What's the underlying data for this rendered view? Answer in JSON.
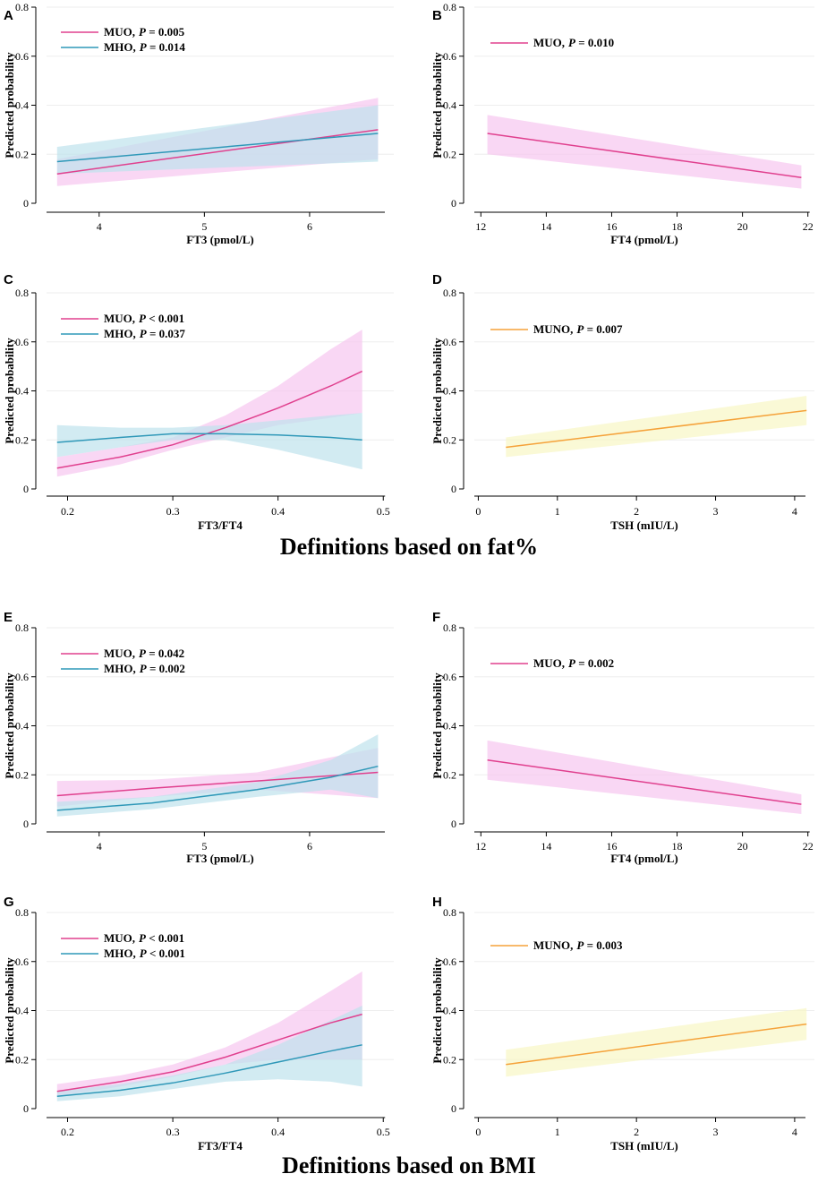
{
  "figure": {
    "section_titles": [
      "Definitions based on fat%",
      "Definitions based on BMI"
    ],
    "y_axis_label": "Predicted probability",
    "y_ticks": [
      "0",
      "0.2",
      "0.4",
      "0.6",
      "0.8"
    ],
    "colors": {
      "MUO": "#e0408e",
      "MHO": "#2f98b8",
      "MUNO": "#f5a23a",
      "MUO_band": "#f7c6ef",
      "MHO_band": "#bfe3ec",
      "MUNO_band": "#f8f7c4",
      "axis": "#000000"
    }
  },
  "chart_data": [
    {
      "panel": "A",
      "type": "line",
      "xlabel": "FT3 (pmol/L)",
      "ylabel": "Predicted probability",
      "xlim": [
        3.5,
        6.8
      ],
      "ylim": [
        0,
        0.8
      ],
      "xticks": [
        4,
        5,
        6
      ],
      "xtick_labels": [
        "4",
        "5",
        "6"
      ],
      "legend": [
        {
          "group": "MUO",
          "text": "MUO,",
          "p_label": "P",
          "p_text": " = 0.005"
        },
        {
          "group": "MHO",
          "text": "MHO,",
          "p_label": "P",
          "p_text": " = 0.014"
        }
      ],
      "series": [
        {
          "group": "MUO",
          "x": [
            3.6,
            6.65
          ],
          "y": [
            0.12,
            0.3
          ],
          "lo": [
            0.07,
            0.18
          ],
          "hi": [
            0.18,
            0.43
          ]
        },
        {
          "group": "MHO",
          "x": [
            3.6,
            6.65
          ],
          "y": [
            0.17,
            0.285
          ],
          "lo": [
            0.12,
            0.17
          ],
          "hi": [
            0.23,
            0.4
          ]
        }
      ]
    },
    {
      "panel": "B",
      "type": "line",
      "xlabel": "FT4 (pmol/L)",
      "ylabel": "Predicted probability",
      "xlim": [
        11.8,
        22.2
      ],
      "ylim": [
        0,
        0.8
      ],
      "xticks": [
        12,
        14,
        16,
        18,
        20,
        22
      ],
      "xtick_labels": [
        "12",
        "14",
        "16",
        "18",
        "20",
        "22"
      ],
      "legend": [
        {
          "group": "MUO",
          "text": "MUO,",
          "p_label": "P",
          "p_text": " = 0.010"
        }
      ],
      "series": [
        {
          "group": "MUO",
          "x": [
            12.2,
            21.8
          ],
          "y": [
            0.285,
            0.105
          ],
          "lo": [
            0.2,
            0.06
          ],
          "hi": [
            0.36,
            0.155
          ]
        }
      ]
    },
    {
      "panel": "C",
      "type": "line",
      "xlabel": "FT3/FT4",
      "ylabel": "Predicted probability",
      "xlim": [
        0.18,
        0.51
      ],
      "ylim": [
        0,
        0.8
      ],
      "xticks": [
        0.2,
        0.3,
        0.4,
        0.5
      ],
      "xtick_labels": [
        "0.2",
        "0.3",
        "0.4",
        "0.5"
      ],
      "legend": [
        {
          "group": "MUO",
          "text": "MUO,",
          "p_label": "P",
          "p_text": " < 0.001"
        },
        {
          "group": "MHO",
          "text": "MHO,",
          "p_label": "P",
          "p_text": " = 0.037"
        }
      ],
      "series": [
        {
          "group": "MUO",
          "x": [
            0.19,
            0.25,
            0.3,
            0.35,
            0.4,
            0.45,
            0.48
          ],
          "y": [
            0.085,
            0.13,
            0.18,
            0.25,
            0.33,
            0.42,
            0.48
          ],
          "lo": [
            0.05,
            0.1,
            0.16,
            0.21,
            0.26,
            0.29,
            0.31
          ],
          "hi": [
            0.13,
            0.17,
            0.21,
            0.3,
            0.42,
            0.57,
            0.65
          ]
        },
        {
          "group": "MHO",
          "x": [
            0.19,
            0.25,
            0.3,
            0.35,
            0.4,
            0.45,
            0.48
          ],
          "y": [
            0.19,
            0.21,
            0.225,
            0.225,
            0.22,
            0.21,
            0.2
          ],
          "lo": [
            0.13,
            0.17,
            0.2,
            0.2,
            0.16,
            0.11,
            0.08
          ],
          "hi": [
            0.26,
            0.25,
            0.25,
            0.26,
            0.28,
            0.3,
            0.31
          ]
        }
      ]
    },
    {
      "panel": "D",
      "type": "line",
      "xlabel": "TSH (mIU/L)",
      "ylabel": "Predicted probability",
      "xlim": [
        -0.05,
        4.25
      ],
      "ylim": [
        0,
        0.8
      ],
      "xticks": [
        0,
        1,
        2,
        3,
        4
      ],
      "xtick_labels": [
        "0",
        "1",
        "2",
        "3",
        "4"
      ],
      "legend": [
        {
          "group": "MUNO",
          "text": "MUNO,",
          "p_label": "P",
          "p_text": " = 0.007"
        }
      ],
      "series": [
        {
          "group": "MUNO",
          "x": [
            0.35,
            4.15
          ],
          "y": [
            0.17,
            0.32
          ],
          "lo": [
            0.13,
            0.26
          ],
          "hi": [
            0.21,
            0.38
          ]
        }
      ]
    },
    {
      "panel": "E",
      "type": "line",
      "xlabel": "FT3 (pmol/L)",
      "ylabel": "Predicted probability",
      "xlim": [
        3.5,
        6.8
      ],
      "ylim": [
        0,
        0.8
      ],
      "xticks": [
        4,
        5,
        6
      ],
      "xtick_labels": [
        "4",
        "5",
        "6"
      ],
      "legend": [
        {
          "group": "MUO",
          "text": "MUO,",
          "p_label": "P",
          "p_text": " = 0.042"
        },
        {
          "group": "MHO",
          "text": "MHO,",
          "p_label": "P",
          "p_text": " = 0.002"
        }
      ],
      "series": [
        {
          "group": "MUO",
          "x": [
            3.6,
            4.5,
            5.5,
            6.65
          ],
          "y": [
            0.115,
            0.145,
            0.175,
            0.21
          ],
          "lo": [
            0.07,
            0.11,
            0.14,
            0.105
          ],
          "hi": [
            0.175,
            0.18,
            0.21,
            0.31
          ]
        },
        {
          "group": "MHO",
          "x": [
            3.6,
            4.5,
            5.5,
            6.2,
            6.65
          ],
          "y": [
            0.055,
            0.085,
            0.14,
            0.19,
            0.235
          ],
          "lo": [
            0.03,
            0.06,
            0.11,
            0.14,
            0.105
          ],
          "hi": [
            0.09,
            0.11,
            0.17,
            0.26,
            0.365
          ]
        }
      ]
    },
    {
      "panel": "F",
      "type": "line",
      "xlabel": "FT4 (pmol/L)",
      "ylabel": "Predicted probability",
      "xlim": [
        11.8,
        22.2
      ],
      "ylim": [
        0,
        0.8
      ],
      "xticks": [
        12,
        14,
        16,
        18,
        20,
        22
      ],
      "xtick_labels": [
        "12",
        "14",
        "16",
        "18",
        "20",
        "22"
      ],
      "legend": [
        {
          "group": "MUO",
          "text": "MUO,",
          "p_label": "P",
          "p_text": " = 0.002"
        }
      ],
      "series": [
        {
          "group": "MUO",
          "x": [
            12.2,
            21.8
          ],
          "y": [
            0.26,
            0.08
          ],
          "lo": [
            0.18,
            0.04
          ],
          "hi": [
            0.34,
            0.12
          ]
        }
      ]
    },
    {
      "panel": "G",
      "type": "line",
      "xlabel": "FT3/FT4",
      "ylabel": "Predicted probability",
      "xlim": [
        0.18,
        0.51
      ],
      "ylim": [
        0,
        0.8
      ],
      "xticks": [
        0.2,
        0.3,
        0.4,
        0.5
      ],
      "xtick_labels": [
        "0.2",
        "0.3",
        "0.4",
        "0.5"
      ],
      "legend": [
        {
          "group": "MUO",
          "text": "MUO,",
          "p_label": "P",
          "p_text": " < 0.001"
        },
        {
          "group": "MHO",
          "text": "MHO,",
          "p_label": "P",
          "p_text": " < 0.001"
        }
      ],
      "series": [
        {
          "group": "MUO",
          "x": [
            0.19,
            0.25,
            0.3,
            0.35,
            0.4,
            0.45,
            0.48
          ],
          "y": [
            0.07,
            0.11,
            0.15,
            0.21,
            0.28,
            0.35,
            0.385
          ],
          "lo": [
            0.05,
            0.09,
            0.13,
            0.18,
            0.2,
            0.2,
            0.2
          ],
          "hi": [
            0.1,
            0.135,
            0.18,
            0.25,
            0.35,
            0.48,
            0.56
          ]
        },
        {
          "group": "MHO",
          "x": [
            0.19,
            0.25,
            0.3,
            0.35,
            0.4,
            0.45,
            0.48
          ],
          "y": [
            0.05,
            0.075,
            0.105,
            0.145,
            0.19,
            0.235,
            0.26
          ],
          "lo": [
            0.03,
            0.05,
            0.08,
            0.11,
            0.12,
            0.11,
            0.09
          ],
          "hi": [
            0.07,
            0.1,
            0.135,
            0.18,
            0.26,
            0.36,
            0.42
          ]
        }
      ]
    },
    {
      "panel": "H",
      "type": "line",
      "xlabel": "TSH (mIU/L)",
      "ylabel": "Predicted probability",
      "xlim": [
        -0.05,
        4.25
      ],
      "ylim": [
        0,
        0.8
      ],
      "xticks": [
        0,
        1,
        2,
        3,
        4
      ],
      "xtick_labels": [
        "0",
        "1",
        "2",
        "3",
        "4"
      ],
      "legend": [
        {
          "group": "MUNO",
          "text": "MUNO,",
          "p_label": "P",
          "p_text": " = 0.003"
        }
      ],
      "series": [
        {
          "group": "MUNO",
          "x": [
            0.35,
            4.15
          ],
          "y": [
            0.18,
            0.345
          ],
          "lo": [
            0.13,
            0.28
          ],
          "hi": [
            0.24,
            0.41
          ]
        }
      ]
    }
  ]
}
